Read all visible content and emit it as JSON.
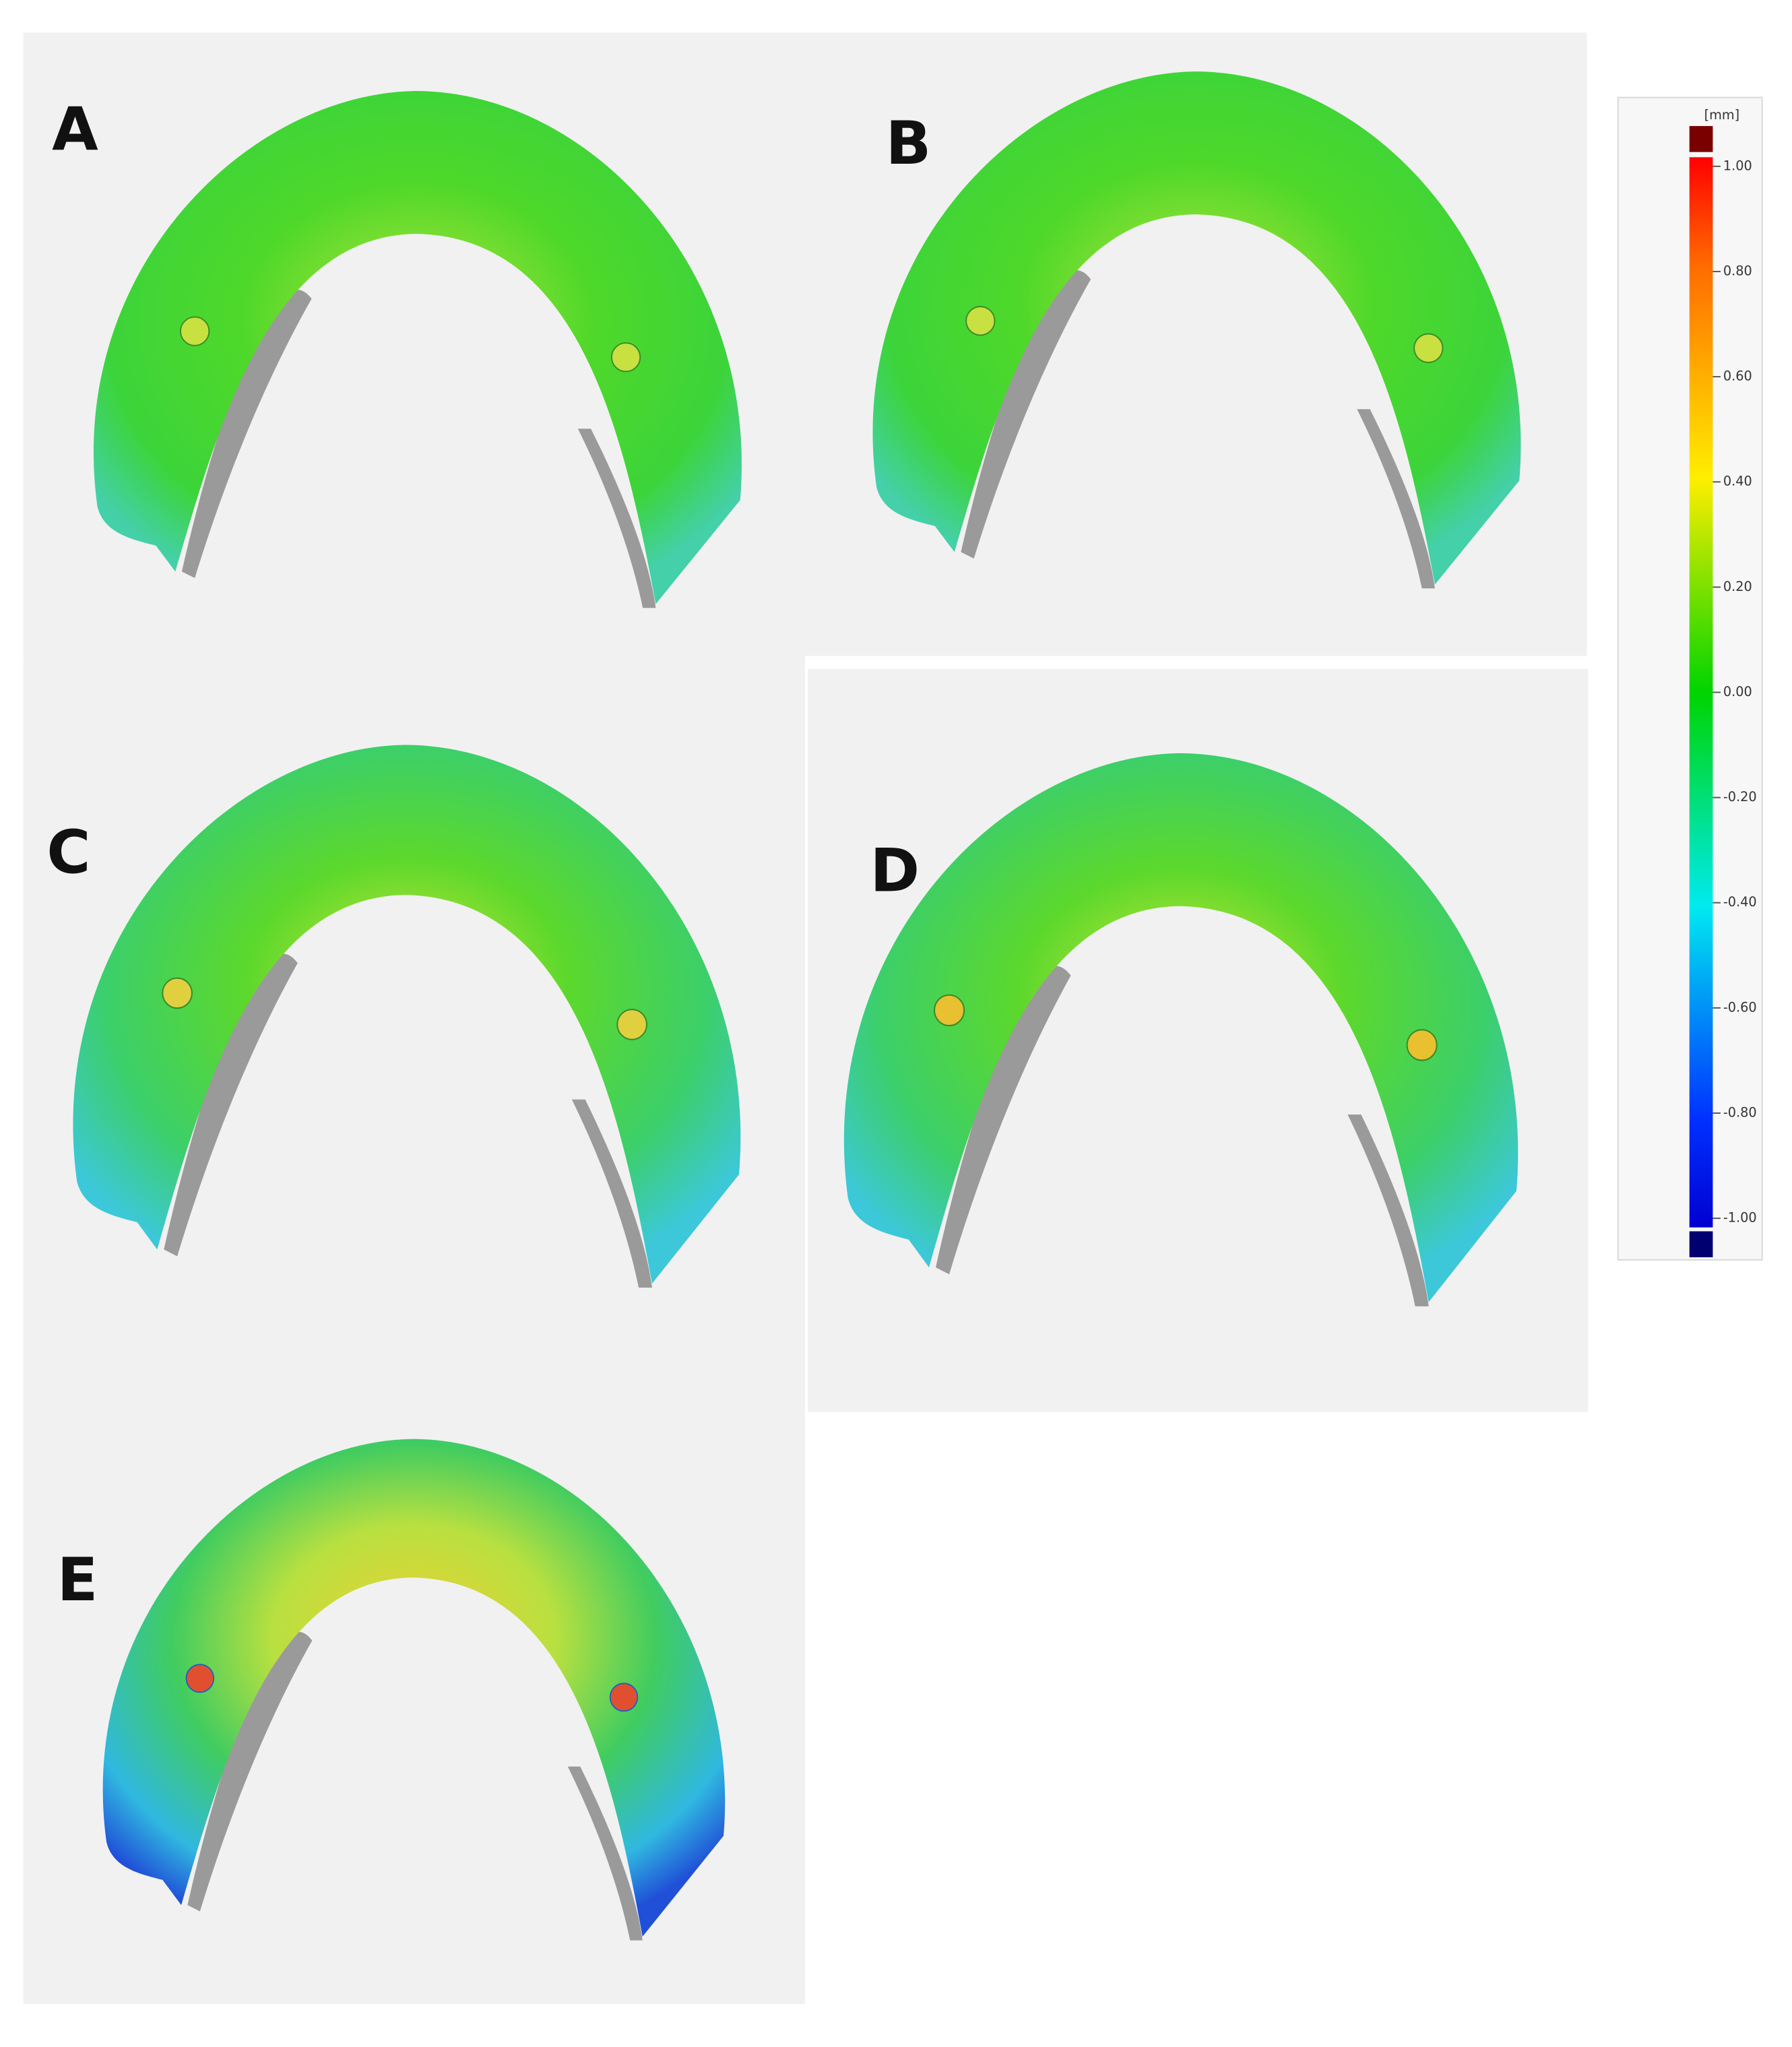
{
  "panels": [
    {
      "label": "A"
    },
    {
      "label": "B"
    },
    {
      "label": "C"
    },
    {
      "label": "D"
    },
    {
      "label": "E"
    }
  ],
  "colorbar": {
    "unit": "[mm]",
    "range": [
      -1,
      1
    ],
    "ticks": [
      {
        "value": 1,
        "label": "1.00"
      },
      {
        "value": 0.8,
        "label": "0.80"
      },
      {
        "value": 0.6,
        "label": "0.60"
      },
      {
        "value": 0.4,
        "label": "0.40"
      },
      {
        "value": 0.2,
        "label": "0.20"
      },
      {
        "value": 0,
        "label": "0.00"
      },
      {
        "value": -0.2,
        "label": "-0.20"
      },
      {
        "value": -0.4,
        "label": "-0.40"
      },
      {
        "value": -0.6,
        "label": "-0.60"
      },
      {
        "value": -0.8,
        "label": "-0.80"
      },
      {
        "value": -1,
        "label": "-1.00"
      }
    ]
  }
}
